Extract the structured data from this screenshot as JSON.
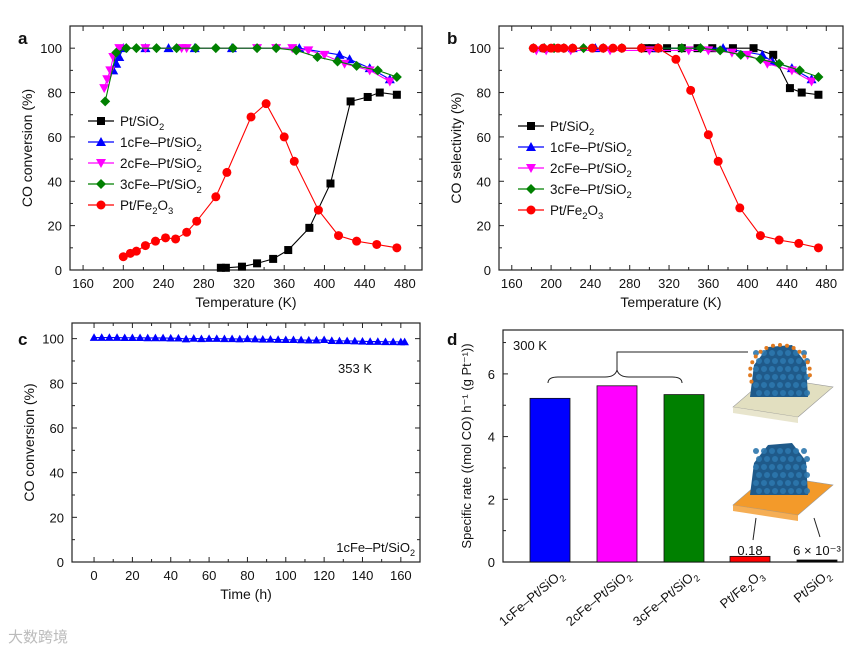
{
  "chart_data": [
    {
      "panel": "a",
      "type": "line",
      "xlabel": "Temperature (K)",
      "ylabel": "CO conversion (%)",
      "xlim": [
        147,
        497
      ],
      "ylim": [
        0,
        110
      ],
      "xticks": [
        160,
        200,
        240,
        280,
        320,
        360,
        400,
        440,
        480
      ],
      "yticks": [
        0,
        20,
        40,
        60,
        80,
        100
      ],
      "legend_position": "left",
      "series": [
        {
          "name": "Pt/SiO2",
          "label_main": "Pt/SiO",
          "label_sub": "2",
          "label_tail": "",
          "color": "#000000",
          "marker": "square",
          "x": [
            297,
            302,
            318,
            333,
            349,
            364,
            385,
            406,
            426,
            443,
            455,
            472
          ],
          "y": [
            1,
            1,
            1.5,
            3,
            5,
            9,
            19,
            39,
            76,
            78,
            80,
            79
          ]
        },
        {
          "name": "1cFe-Pt/SiO2",
          "label_main": "1cFe–Pt/SiO",
          "label_sub": "2",
          "label_tail": "",
          "color": "#0000ff",
          "marker": "triangle-up",
          "x": [
            190,
            193,
            196,
            200,
            222,
            245,
            271,
            308,
            375,
            415,
            425,
            445,
            465
          ],
          "y": [
            90,
            93,
            96,
            100,
            100,
            100,
            100,
            100,
            100,
            97,
            95,
            91,
            86
          ]
        },
        {
          "name": "2cFe-Pt/SiO2",
          "label_main": "2cFe–Pt/SiO",
          "label_sub": "2",
          "label_tail": "",
          "color": "#ff00ff",
          "marker": "triangle-down",
          "x": [
            181,
            184,
            187,
            190,
            196,
            222,
            258,
            263,
            333,
            352,
            368,
            384,
            400,
            420,
            445,
            465
          ],
          "y": [
            82,
            86,
            90,
            96,
            100,
            100,
            100,
            100,
            100,
            100,
            100,
            99,
            97,
            93,
            90,
            85
          ]
        },
        {
          "name": "3cFe-Pt/SiO2",
          "label_main": "3cFe–Pt/SiO",
          "label_sub": "2",
          "label_tail": "",
          "color": "#008000",
          "marker": "diamond",
          "x": [
            182,
            193,
            203,
            213,
            233,
            253,
            272,
            292,
            309,
            333,
            352,
            372,
            393,
            413,
            432,
            453,
            472
          ],
          "y": [
            76,
            98,
            100,
            100,
            100,
            100,
            100,
            100,
            100,
            100,
            100,
            99,
            96,
            94,
            92,
            90,
            87
          ]
        },
        {
          "name": "Pt/Fe2O3",
          "label_main": "Pt/Fe",
          "label_sub": "2",
          "label_tail": "O",
          "label_sub2": "3",
          "color": "#ff0000",
          "marker": "circle",
          "x": [
            200,
            207,
            213,
            222,
            232,
            242,
            252,
            263,
            273,
            292,
            303,
            327,
            342,
            360,
            370,
            394,
            414,
            432,
            452,
            472
          ],
          "y": [
            6,
            7.5,
            8.5,
            11,
            13,
            14.5,
            14,
            17,
            22,
            33,
            44,
            69,
            75,
            60,
            49,
            27,
            15.5,
            13,
            11.5,
            10
          ]
        }
      ]
    },
    {
      "panel": "b",
      "type": "line",
      "xlabel": "Temperature (K)",
      "ylabel": "CO selectivity (%)",
      "xlim": [
        147,
        497
      ],
      "ylim": [
        0,
        110
      ],
      "xticks": [
        160,
        200,
        240,
        280,
        320,
        360,
        400,
        440,
        480
      ],
      "yticks": [
        0,
        20,
        40,
        60,
        80,
        100
      ],
      "legend_position": "left",
      "series": [
        {
          "name": "Pt/SiO2",
          "label_main": "Pt/SiO",
          "label_sub": "2",
          "label_tail": "",
          "color": "#000000",
          "marker": "square",
          "x": [
            297,
            303,
            318,
            333,
            349,
            364,
            385,
            406,
            426,
            443,
            455,
            472
          ],
          "y": [
            100,
            100,
            100,
            100,
            100,
            100,
            100,
            100,
            97,
            82,
            80,
            79
          ]
        },
        {
          "name": "1cFe-Pt/SiO2",
          "label_main": "1cFe–Pt/SiO",
          "label_sub": "2",
          "label_tail": "",
          "color": "#0000ff",
          "marker": "triangle-up",
          "x": [
            193,
            222,
            245,
            308,
            375,
            415,
            425,
            445,
            465
          ],
          "y": [
            100,
            100,
            100,
            100,
            100,
            97,
            94,
            91,
            86
          ]
        },
        {
          "name": "2cFe-Pt/SiO2",
          "label_main": "2cFe–Pt/SiO",
          "label_sub": "2",
          "label_tail": "",
          "color": "#ff00ff",
          "marker": "triangle-down",
          "x": [
            185,
            195,
            220,
            260,
            300,
            340,
            360,
            384,
            400,
            420,
            445,
            465
          ],
          "y": [
            99,
            99,
            99,
            99,
            99,
            99,
            99,
            98,
            97,
            93,
            90,
            85
          ]
        },
        {
          "name": "3cFe-Pt/SiO2",
          "label_main": "3cFe–Pt/SiO",
          "label_sub": "2",
          "label_tail": "",
          "color": "#008000",
          "marker": "diamond",
          "x": [
            182,
            193,
            203,
            213,
            233,
            253,
            272,
            292,
            309,
            333,
            352,
            372,
            393,
            413,
            432,
            453,
            472
          ],
          "y": [
            100,
            100,
            100,
            100,
            100,
            100,
            100,
            100,
            100,
            100,
            100,
            99,
            97,
            95,
            93,
            90,
            87
          ]
        },
        {
          "name": "Pt/Fe2O3",
          "label_main": "Pt/Fe",
          "label_sub": "2",
          "label_tail": "O",
          "label_sub2": "3",
          "color": "#ff0000",
          "marker": "circle",
          "x": [
            182,
            192,
            200,
            207,
            213,
            222,
            242,
            253,
            263,
            272,
            292,
            309,
            327,
            342,
            360,
            370,
            392,
            413,
            432,
            452,
            472
          ],
          "y": [
            100,
            100,
            100,
            100,
            100,
            100,
            100,
            100,
            100,
            100,
            100,
            100,
            95,
            81,
            61,
            49,
            28,
            15.5,
            13.5,
            12,
            10
          ]
        }
      ]
    },
    {
      "panel": "c",
      "type": "line",
      "xlabel": "Time (h)",
      "ylabel": "CO conversion (%)",
      "xlim": [
        -11.5,
        170
      ],
      "ylim": [
        0,
        107
      ],
      "xticks": [
        0,
        20,
        40,
        60,
        80,
        100,
        120,
        140,
        160
      ],
      "yticks": [
        0,
        20,
        40,
        60,
        80,
        100
      ],
      "annotations": [
        "353 K",
        "1cFe–Pt/SiO2"
      ],
      "annotation_main": "1cFe–Pt/SiO",
      "annotation_sub": "2",
      "series": [
        {
          "name": "1cFe-Pt/SiO2",
          "color": "#0000ff",
          "marker": "triangle-up",
          "x": [
            0,
            4,
            8,
            12,
            16,
            20,
            24,
            28,
            32,
            36,
            40,
            44,
            48,
            52,
            56,
            60,
            64,
            68,
            72,
            76,
            80,
            84,
            88,
            92,
            96,
            100,
            104,
            108,
            112,
            116,
            120,
            124,
            128,
            132,
            136,
            140,
            144,
            148,
            152,
            156,
            160,
            162
          ],
          "y": [
            100.5,
            100.5,
            100.5,
            100.5,
            100.4,
            100.4,
            100.4,
            100.3,
            100.3,
            100.3,
            100.2,
            100.2,
            99.8,
            100.1,
            99.9,
            100,
            100,
            99.9,
            99.9,
            99.8,
            99.9,
            99.8,
            99.7,
            99.7,
            99.6,
            99.5,
            99.5,
            99.4,
            99.3,
            99.3,
            99.5,
            99.1,
            99,
            99,
            98.9,
            98.8,
            98.7,
            98.7,
            98.6,
            98.6,
            98.5,
            98.5
          ]
        }
      ]
    },
    {
      "panel": "d",
      "type": "bar",
      "ylabel": "Specific rate ((mol CO) h⁻¹ (g Pt⁻¹))",
      "ylim": [
        0,
        7.4
      ],
      "yticks": [
        0,
        2,
        4,
        6
      ],
      "annotation": "300 K",
      "categories": [
        "1cFe–Pt/SiO2",
        "2cFe–Pt/SiO2",
        "3cFe–Pt/SiO2",
        "Pt/Fe2O3",
        "Pt/SiO2"
      ],
      "category_main": [
        "1cFe–Pt/SiO",
        "2cFe–Pt/SiO",
        "3cFe–Pt/SiO",
        "Pt/Fe",
        "Pt/SiO"
      ],
      "category_sub": [
        "2",
        "2",
        "2",
        "2",
        "2"
      ],
      "category_tail": [
        "",
        "",
        "",
        "O",
        ""
      ],
      "category_sub2": [
        "",
        "",
        "",
        "3",
        ""
      ],
      "values": [
        5.22,
        5.62,
        5.34,
        0.18,
        0.006
      ],
      "colors": [
        "#0000ff",
        "#ff00ff",
        "#008000",
        "#ff0000",
        "#000000"
      ],
      "value_labels": [
        "",
        "",
        "",
        "0.18",
        "6 × 10⁻³"
      ]
    }
  ],
  "panel_labels": [
    "a",
    "b",
    "c",
    "d"
  ],
  "watermark": "大数跨境"
}
